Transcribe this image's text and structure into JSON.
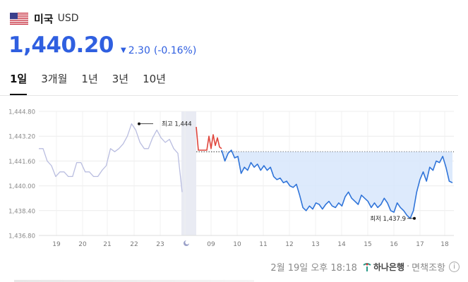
{
  "header": {
    "flag_icon": "us-flag-icon",
    "country": "미국",
    "currency": "USD"
  },
  "quote": {
    "price": "1,440.20",
    "direction": "down",
    "change": "2.30",
    "change_pct": "(-0.16%)",
    "color_down": "#2f5fe0"
  },
  "tabs": [
    {
      "label": "1일",
      "active": true
    },
    {
      "label": "3개월",
      "active": false
    },
    {
      "label": "1년",
      "active": false
    },
    {
      "label": "3년",
      "active": false
    },
    {
      "label": "10년",
      "active": false
    }
  ],
  "chart_data": {
    "type": "line",
    "y_ticks": [
      "1,444.80",
      "1,443.20",
      "1,441.60",
      "1,440.00",
      "1,438.40",
      "1,436.80"
    ],
    "ylim": [
      1436.8,
      1444.8
    ],
    "x_ticks": [
      "19",
      "20",
      "21",
      "22",
      "23",
      "moon-icon",
      "09",
      "10",
      "11",
      "12",
      "13",
      "14",
      "15",
      "16",
      "17",
      "18"
    ],
    "reference_value": 1442.2,
    "annotations": [
      {
        "label": "최고 1,444",
        "value": 1444.0
      },
      {
        "label": "최저 1,437.9",
        "value": 1437.9
      }
    ],
    "series": [
      {
        "role": "previous_days",
        "color": "#b9bde0",
        "values": [
          1442.4,
          1442.4,
          1441.6,
          1441.3,
          1440.6,
          1440.9,
          1440.9,
          1440.6,
          1440.6,
          1441.5,
          1441.5,
          1440.9,
          1440.9,
          1440.6,
          1440.6,
          1441.0,
          1441.3,
          1442.4,
          1442.2,
          1442.4,
          1442.7,
          1443.2,
          1444.0,
          1443.6,
          1442.8,
          1442.4,
          1442.4,
          1443.1,
          1443.6,
          1443.1,
          1442.8,
          1443.0,
          1442.4,
          1442.1,
          1439.6
        ]
      },
      {
        "role": "pre_open",
        "color": "#e0463d",
        "values": [
          1443.8,
          1442.3,
          1442.3,
          1442.3,
          1442.3,
          1442.3,
          1443.2,
          1442.4,
          1443.3,
          1442.6,
          1443.1,
          1442.5,
          1442.4
        ]
      },
      {
        "role": "today",
        "color": "#2f74d9",
        "fill": "#d7e6fb",
        "values": [
          1442.3,
          1441.6,
          1442.1,
          1442.3,
          1441.8,
          1441.9,
          1440.8,
          1441.2,
          1441.0,
          1441.5,
          1441.2,
          1441.4,
          1441.0,
          1441.3,
          1441.0,
          1441.2,
          1440.6,
          1440.4,
          1440.5,
          1440.2,
          1440.3,
          1440.0,
          1439.9,
          1440.1,
          1439.4,
          1438.6,
          1438.4,
          1438.7,
          1438.5,
          1438.9,
          1438.8,
          1438.5,
          1438.8,
          1439.0,
          1438.7,
          1438.6,
          1438.9,
          1438.7,
          1439.3,
          1439.6,
          1439.2,
          1439.0,
          1438.8,
          1439.4,
          1439.2,
          1439.0,
          1438.6,
          1438.9,
          1438.6,
          1438.8,
          1439.2,
          1438.9,
          1438.4,
          1438.3,
          1438.9,
          1438.6,
          1438.4,
          1438.1,
          1437.9,
          1438.4,
          1439.6,
          1440.4,
          1440.9,
          1440.3,
          1441.2,
          1441.0,
          1441.6,
          1441.5,
          1441.9,
          1441.2,
          1440.3,
          1440.2
        ]
      }
    ]
  },
  "footer": {
    "timestamp": "2월 19일 오후 18:18",
    "bank_icon": "hana-bank-logo-icon",
    "bank": "하나은행",
    "separator": "·",
    "disclaimer": "면책조항",
    "info_icon": "info-icon"
  }
}
